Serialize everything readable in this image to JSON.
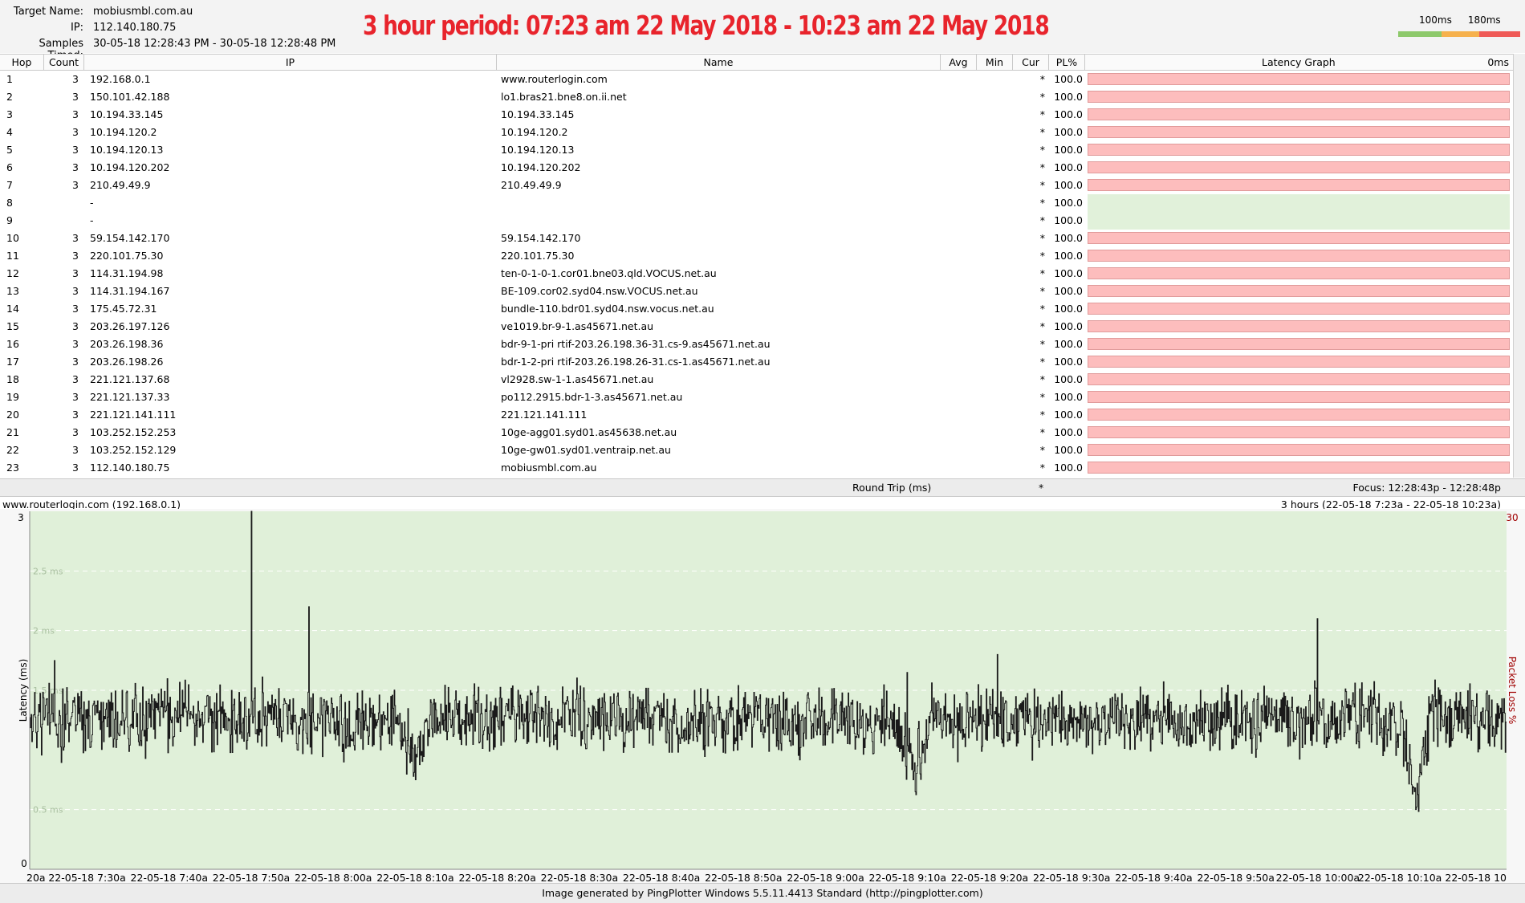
{
  "header": {
    "target_label": "Target Name:",
    "target_value": "mobiusmbl.com.au",
    "ip_label": "IP:",
    "ip_value": "112.140.180.75",
    "samples_label": "Samples Timed:",
    "samples_value": "30-05-18 12:28:43 PM - 30-05-18 12:28:48 PM",
    "banner": "3 hour period:  07:23 am 22 May 2018 - 10:23 am 22 May 2018",
    "legend_labels": [
      "100ms",
      "180ms"
    ],
    "legend_colors": [
      "#8dc96b",
      "#f6b14d",
      "#ef5a57"
    ]
  },
  "table": {
    "columns": [
      "Hop",
      "Count",
      "IP",
      "Name",
      "Avg",
      "Min",
      "Cur",
      "PL%",
      "Latency Graph",
      "0ms"
    ],
    "rows": [
      {
        "hop": "1",
        "count": "3",
        "ip": "192.168.0.1",
        "name": "www.routerlogin.com",
        "cur": "*",
        "pl": "100.0",
        "status": "loss"
      },
      {
        "hop": "2",
        "count": "3",
        "ip": "150.101.42.188",
        "name": "lo1.bras21.bne8.on.ii.net",
        "cur": "*",
        "pl": "100.0",
        "status": "loss"
      },
      {
        "hop": "3",
        "count": "3",
        "ip": "10.194.33.145",
        "name": "10.194.33.145",
        "cur": "*",
        "pl": "100.0",
        "status": "loss"
      },
      {
        "hop": "4",
        "count": "3",
        "ip": "10.194.120.2",
        "name": "10.194.120.2",
        "cur": "*",
        "pl": "100.0",
        "status": "loss"
      },
      {
        "hop": "5",
        "count": "3",
        "ip": "10.194.120.13",
        "name": "10.194.120.13",
        "cur": "*",
        "pl": "100.0",
        "status": "loss"
      },
      {
        "hop": "6",
        "count": "3",
        "ip": "10.194.120.202",
        "name": "10.194.120.202",
        "cur": "*",
        "pl": "100.0",
        "status": "loss"
      },
      {
        "hop": "7",
        "count": "3",
        "ip": "210.49.49.9",
        "name": "210.49.49.9",
        "cur": "*",
        "pl": "100.0",
        "status": "loss"
      },
      {
        "hop": "8",
        "count": "",
        "ip": "-",
        "name": "",
        "cur": "*",
        "pl": "100.0",
        "status": "none"
      },
      {
        "hop": "9",
        "count": "",
        "ip": "-",
        "name": "",
        "cur": "*",
        "pl": "100.0",
        "status": "none"
      },
      {
        "hop": "10",
        "count": "3",
        "ip": "59.154.142.170",
        "name": "59.154.142.170",
        "cur": "*",
        "pl": "100.0",
        "status": "loss"
      },
      {
        "hop": "11",
        "count": "3",
        "ip": "220.101.75.30",
        "name": "220.101.75.30",
        "cur": "*",
        "pl": "100.0",
        "status": "loss"
      },
      {
        "hop": "12",
        "count": "3",
        "ip": "114.31.194.98",
        "name": "ten-0-1-0-1.cor01.bne03.qld.VOCUS.net.au",
        "cur": "*",
        "pl": "100.0",
        "status": "loss"
      },
      {
        "hop": "13",
        "count": "3",
        "ip": "114.31.194.167",
        "name": "BE-109.cor02.syd04.nsw.VOCUS.net.au",
        "cur": "*",
        "pl": "100.0",
        "status": "loss"
      },
      {
        "hop": "14",
        "count": "3",
        "ip": "175.45.72.31",
        "name": "bundle-110.bdr01.syd04.nsw.vocus.net.au",
        "cur": "*",
        "pl": "100.0",
        "status": "loss"
      },
      {
        "hop": "15",
        "count": "3",
        "ip": "203.26.197.126",
        "name": "ve1019.br-9-1.as45671.net.au",
        "cur": "*",
        "pl": "100.0",
        "status": "loss"
      },
      {
        "hop": "16",
        "count": "3",
        "ip": "203.26.198.36",
        "name": "bdr-9-1-pri rtif-203.26.198.36-31.cs-9.as45671.net.au",
        "cur": "*",
        "pl": "100.0",
        "status": "loss"
      },
      {
        "hop": "17",
        "count": "3",
        "ip": "203.26.198.26",
        "name": "bdr-1-2-pri rtif-203.26.198.26-31.cs-1.as45671.net.au",
        "cur": "*",
        "pl": "100.0",
        "status": "loss"
      },
      {
        "hop": "18",
        "count": "3",
        "ip": "221.121.137.68",
        "name": "vl2928.sw-1-1.as45671.net.au",
        "cur": "*",
        "pl": "100.0",
        "status": "loss"
      },
      {
        "hop": "19",
        "count": "3",
        "ip": "221.121.137.33",
        "name": "po112.2915.bdr-1-3.as45671.net.au",
        "cur": "*",
        "pl": "100.0",
        "status": "loss"
      },
      {
        "hop": "20",
        "count": "3",
        "ip": "221.121.141.111",
        "name": "221.121.141.111",
        "cur": "*",
        "pl": "100.0",
        "status": "loss"
      },
      {
        "hop": "21",
        "count": "3",
        "ip": "103.252.152.253",
        "name": "10ge-agg01.syd01.as45638.net.au",
        "cur": "*",
        "pl": "100.0",
        "status": "loss"
      },
      {
        "hop": "22",
        "count": "3",
        "ip": "103.252.152.129",
        "name": "10ge-gw01.syd01.ventraip.net.au",
        "cur": "*",
        "pl": "100.0",
        "status": "loss"
      },
      {
        "hop": "23",
        "count": "3",
        "ip": "112.140.180.75",
        "name": "mobiusmbl.com.au",
        "cur": "*",
        "pl": "100.0",
        "status": "loss"
      }
    ]
  },
  "summary": {
    "label": "Round Trip (ms)",
    "cur": "*",
    "focus": "Focus: 12:28:43p - 12:28:48p"
  },
  "graph": {
    "title": "www.routerlogin.com (192.168.0.1)",
    "range": "3 hours (22-05-18 7:23a - 22-05-18 10:23a)",
    "y_axis_label": "Latency (ms)",
    "y2_axis_label": "Packet Loss %",
    "y_top_label": "3",
    "y_bottom_label": "0",
    "y2_top_label": "30",
    "footer": "Image generated by PingPlotter Windows 5.5.11.4413 Standard (http://pingplotter.com)"
  },
  "chart_data": {
    "type": "line",
    "title": "",
    "xlabel": "",
    "ylabel": "Latency (ms)",
    "ylim": [
      0,
      3
    ],
    "y_ticks": [
      {
        "value": 2.5,
        "label": "2.5 ms"
      },
      {
        "value": 2.0,
        "label": "2 ms"
      },
      {
        "value": 1.5,
        "label": "1.5 ms"
      },
      {
        "value": 0.5,
        "label": "0.5 ms"
      }
    ],
    "x_ticks": [
      "20a",
      "22-05-18 7:30a",
      "22-05-18 7:40a",
      "22-05-18 7:50a",
      "22-05-18 8:00a",
      "22-05-18 8:10a",
      "22-05-18 8:20a",
      "22-05-18 8:30a",
      "22-05-18 8:40a",
      "22-05-18 8:50a",
      "22-05-18 9:00a",
      "22-05-18 9:10a",
      "22-05-18 9:20a",
      "22-05-18 9:30a",
      "22-05-18 9:40a",
      "22-05-18 9:50a",
      "22-05-18 10:00a",
      "22-05-18 10:10a",
      "22-05-18 10"
    ],
    "x_range": [
      "22-05-18 7:23a",
      "22-05-18 10:23a"
    ],
    "series": [
      {
        "color": "#1a1a1a",
        "baseline": 1.25,
        "noise": 0.22,
        "samples": 2160,
        "spikes": [
          {
            "x": "22-05-18 7:26a",
            "value": 1.75
          },
          {
            "x": "22-05-18 7:50a",
            "value": 3.0
          },
          {
            "x": "22-05-18 7:57a",
            "value": 2.2
          },
          {
            "x": "22-05-18 8:44a",
            "value": 1.5
          },
          {
            "x": "22-05-18 9:10a",
            "value": 1.65
          },
          {
            "x": "22-05-18 9:21a",
            "value": 1.8
          },
          {
            "x": "22-05-18 10:00a",
            "value": 2.1
          }
        ],
        "dips": [
          {
            "x": "22-05-18 8:10a",
            "value": 0.75
          },
          {
            "x": "22-05-18 9:11a",
            "value": 0.65
          },
          {
            "x": "22-05-18 10:12a",
            "value": 0.5
          }
        ]
      }
    ],
    "background": "#e0f0d9",
    "grid": "dashed"
  }
}
